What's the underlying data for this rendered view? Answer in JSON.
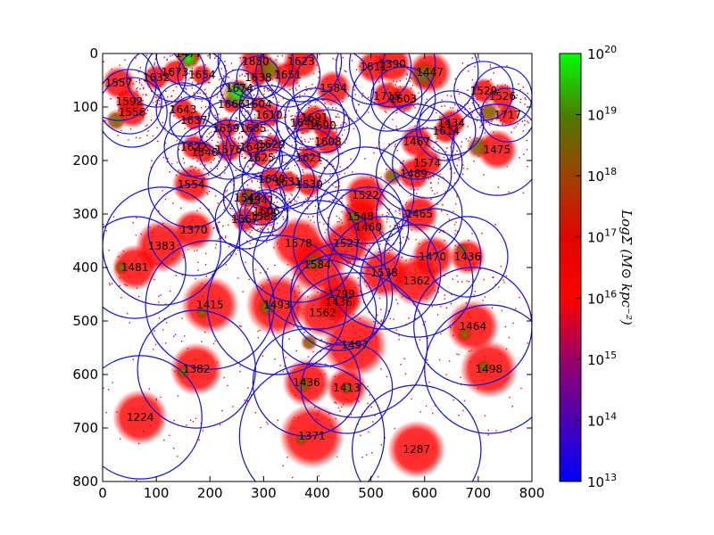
{
  "chart_data": {
    "type": "scatter",
    "title": "",
    "xlabel": "",
    "ylabel": "",
    "xlim": [
      0,
      800
    ],
    "ylim": [
      800,
      0
    ],
    "x_ticks": [
      "0",
      "100",
      "200",
      "300",
      "400",
      "500",
      "600",
      "700",
      "800"
    ],
    "y_ticks": [
      "0",
      "100",
      "200",
      "300",
      "400",
      "500",
      "600",
      "700",
      "800"
    ],
    "colorbar": {
      "label": "LogΣ (M⊙ kpc⁻²)",
      "scale": "log",
      "range": [
        13,
        20
      ],
      "tick_exponents": [
        "13",
        "14",
        "15",
        "16",
        "17",
        "18",
        "19",
        "20"
      ],
      "tick_base": "10",
      "colors": [
        "#0000ff",
        "#4b00b4",
        "#96006a",
        "#ff0000",
        "#c01a00",
        "#6a7000",
        "#00ff00"
      ]
    },
    "circle_color": "#1010e0",
    "halos": [
      {
        "id": "1477",
        "x": 160,
        "y": 0,
        "r": 60
      },
      {
        "id": "1673",
        "x": 135,
        "y": 35,
        "r": 55
      },
      {
        "id": "1654",
        "x": 185,
        "y": 40,
        "r": 45
      },
      {
        "id": "1632",
        "x": 100,
        "y": 45,
        "r": 55
      },
      {
        "id": "1557",
        "x": 30,
        "y": 55,
        "r": 70
      },
      {
        "id": "1592",
        "x": 50,
        "y": 90,
        "r": 60
      },
      {
        "id": "1556",
        "x": 55,
        "y": 110,
        "r": 65
      },
      {
        "id": "1643",
        "x": 150,
        "y": 105,
        "r": 50
      },
      {
        "id": "1637",
        "x": 170,
        "y": 125,
        "r": 45
      },
      {
        "id": "1850",
        "x": 285,
        "y": 15,
        "r": 70
      },
      {
        "id": "1638",
        "x": 290,
        "y": 45,
        "r": 40
      },
      {
        "id": "1674",
        "x": 255,
        "y": 65,
        "r": 35
      },
      {
        "id": "1666",
        "x": 240,
        "y": 95,
        "r": 40
      },
      {
        "id": "1604",
        "x": 290,
        "y": 95,
        "r": 35
      },
      {
        "id": "1610",
        "x": 310,
        "y": 115,
        "r": 55
      },
      {
        "id": "1659",
        "x": 230,
        "y": 140,
        "r": 50
      },
      {
        "id": "1685",
        "x": 280,
        "y": 140,
        "r": 45
      },
      {
        "id": "1622",
        "x": 170,
        "y": 175,
        "r": 55
      },
      {
        "id": "1546",
        "x": 190,
        "y": 185,
        "r": 50
      },
      {
        "id": "1576",
        "x": 235,
        "y": 180,
        "r": 55
      },
      {
        "id": "1642",
        "x": 280,
        "y": 175,
        "r": 50
      },
      {
        "id": "1629",
        "x": 315,
        "y": 170,
        "r": 45
      },
      {
        "id": "1625",
        "x": 295,
        "y": 195,
        "r": 40
      },
      {
        "id": "1623",
        "x": 370,
        "y": 15,
        "r": 75
      },
      {
        "id": "1651",
        "x": 345,
        "y": 40,
        "r": 60
      },
      {
        "id": "1584a",
        "label": "1584",
        "x": 430,
        "y": 65,
        "r": 75
      },
      {
        "id": "1691",
        "x": 395,
        "y": 120,
        "r": 55
      },
      {
        "id": "1640",
        "x": 375,
        "y": 130,
        "r": 50
      },
      {
        "id": "1690",
        "x": 410,
        "y": 135,
        "r": 50
      },
      {
        "id": "1608",
        "x": 420,
        "y": 165,
        "r": 60
      },
      {
        "id": "1621",
        "x": 385,
        "y": 195,
        "r": 55
      },
      {
        "id": "1611",
        "x": 505,
        "y": 25,
        "r": 70
      },
      {
        "id": "1390",
        "x": 540,
        "y": 20,
        "r": 80
      },
      {
        "id": "1447",
        "x": 610,
        "y": 35,
        "r": 90
      },
      {
        "id": "1715",
        "x": 530,
        "y": 80,
        "r": 65
      },
      {
        "id": "1603",
        "x": 560,
        "y": 85,
        "r": 60
      },
      {
        "id": "1529",
        "x": 710,
        "y": 70,
        "r": 55
      },
      {
        "id": "1526",
        "x": 745,
        "y": 80,
        "r": 55
      },
      {
        "id": "1717",
        "x": 755,
        "y": 115,
        "r": 50
      },
      {
        "id": "1434",
        "x": 650,
        "y": 130,
        "r": 60
      },
      {
        "id": "1614",
        "x": 640,
        "y": 145,
        "r": 55
      },
      {
        "id": "1467",
        "x": 585,
        "y": 165,
        "r": 70
      },
      {
        "id": "1475",
        "x": 735,
        "y": 180,
        "r": 85
      },
      {
        "id": "1574",
        "x": 605,
        "y": 205,
        "r": 65
      },
      {
        "id": "1489",
        "x": 580,
        "y": 225,
        "r": 70
      },
      {
        "id": "1554",
        "x": 165,
        "y": 245,
        "r": 80
      },
      {
        "id": "1640b",
        "label": "1640",
        "x": 315,
        "y": 235,
        "r": 55
      },
      {
        "id": "1631",
        "x": 345,
        "y": 240,
        "r": 50
      },
      {
        "id": "1530",
        "x": 385,
        "y": 245,
        "r": 55
      },
      {
        "id": "1544",
        "x": 270,
        "y": 270,
        "r": 45
      },
      {
        "id": "1541",
        "x": 295,
        "y": 275,
        "r": 45
      },
      {
        "id": "1606",
        "x": 305,
        "y": 295,
        "r": 40
      },
      {
        "id": "1588",
        "x": 300,
        "y": 305,
        "r": 45
      },
      {
        "id": "1567",
        "x": 265,
        "y": 310,
        "r": 55
      },
      {
        "id": "1522",
        "x": 490,
        "y": 265,
        "r": 90
      },
      {
        "id": "1548",
        "x": 480,
        "y": 305,
        "r": 80
      },
      {
        "id": "1460",
        "x": 495,
        "y": 325,
        "r": 75
      },
      {
        "id": "1465",
        "x": 590,
        "y": 300,
        "r": 80
      },
      {
        "id": "1370",
        "x": 170,
        "y": 330,
        "r": 85
      },
      {
        "id": "1383",
        "x": 110,
        "y": 360,
        "r": 110
      },
      {
        "id": "1578",
        "x": 365,
        "y": 355,
        "r": 110
      },
      {
        "id": "1527",
        "x": 455,
        "y": 355,
        "r": 100
      },
      {
        "id": "1470",
        "x": 615,
        "y": 380,
        "r": 90
      },
      {
        "id": "1436",
        "x": 680,
        "y": 380,
        "r": 75
      },
      {
        "id": "1481",
        "x": 60,
        "y": 400,
        "r": 95
      },
      {
        "id": "1584",
        "x": 400,
        "y": 395,
        "r": 120
      },
      {
        "id": "1538",
        "x": 525,
        "y": 410,
        "r": 105
      },
      {
        "id": "1362",
        "x": 585,
        "y": 425,
        "r": 105
      },
      {
        "id": "1415",
        "x": 200,
        "y": 470,
        "r": 120
      },
      {
        "id": "1493",
        "x": 325,
        "y": 470,
        "r": 130
      },
      {
        "id": "1799",
        "x": 445,
        "y": 450,
        "r": 95
      },
      {
        "id": "1436b",
        "label": "1436",
        "x": 440,
        "y": 465,
        "r": 90
      },
      {
        "id": "1562",
        "x": 410,
        "y": 485,
        "r": 100
      },
      {
        "id": "1497",
        "x": 470,
        "y": 545,
        "r": 135
      },
      {
        "id": "1464",
        "x": 690,
        "y": 510,
        "r": 110
      },
      {
        "id": "1382",
        "x": 175,
        "y": 590,
        "r": 110
      },
      {
        "id": "1224",
        "x": 70,
        "y": 680,
        "r": 115
      },
      {
        "id": "1436c",
        "label": "1436",
        "x": 380,
        "y": 615,
        "r": 100
      },
      {
        "id": "1413",
        "x": 455,
        "y": 625,
        "r": 85
      },
      {
        "id": "1498",
        "x": 720,
        "y": 590,
        "r": 120
      },
      {
        "id": "1371",
        "x": 390,
        "y": 715,
        "r": 135
      },
      {
        "id": "1287",
        "x": 585,
        "y": 740,
        "r": 120
      }
    ],
    "bright_cores": [
      {
        "x": 160,
        "y": 10,
        "r": 22,
        "level": "green"
      },
      {
        "x": 250,
        "y": 75,
        "r": 30,
        "level": "green"
      },
      {
        "x": 310,
        "y": 30,
        "r": 25,
        "level": "olive"
      },
      {
        "x": 600,
        "y": 40,
        "r": 28,
        "level": "olive"
      },
      {
        "x": 720,
        "y": 110,
        "r": 20,
        "level": "olive"
      },
      {
        "x": 700,
        "y": 175,
        "r": 22,
        "level": "olive"
      },
      {
        "x": 25,
        "y": 125,
        "r": 20,
        "level": "olive"
      },
      {
        "x": 270,
        "y": 270,
        "r": 20,
        "level": "olive"
      },
      {
        "x": 540,
        "y": 230,
        "r": 18,
        "level": "olive"
      },
      {
        "x": 470,
        "y": 305,
        "r": 16,
        "level": "olive"
      },
      {
        "x": 395,
        "y": 390,
        "r": 20,
        "level": "olive"
      },
      {
        "x": 305,
        "y": 475,
        "r": 18,
        "level": "olive"
      },
      {
        "x": 385,
        "y": 540,
        "r": 16,
        "level": "olive"
      },
      {
        "x": 375,
        "y": 620,
        "r": 16,
        "level": "olive"
      },
      {
        "x": 455,
        "y": 625,
        "r": 14,
        "level": "olive"
      },
      {
        "x": 150,
        "y": 595,
        "r": 14,
        "level": "olive"
      },
      {
        "x": 35,
        "y": 400,
        "r": 14,
        "level": "olive"
      },
      {
        "x": 185,
        "y": 485,
        "r": 12,
        "level": "olive"
      },
      {
        "x": 675,
        "y": 525,
        "r": 14,
        "level": "olive"
      },
      {
        "x": 710,
        "y": 585,
        "r": 14,
        "level": "olive"
      },
      {
        "x": 670,
        "y": 365,
        "r": 12,
        "level": "olive"
      },
      {
        "x": 370,
        "y": 722,
        "r": 12,
        "level": "olive"
      }
    ]
  }
}
